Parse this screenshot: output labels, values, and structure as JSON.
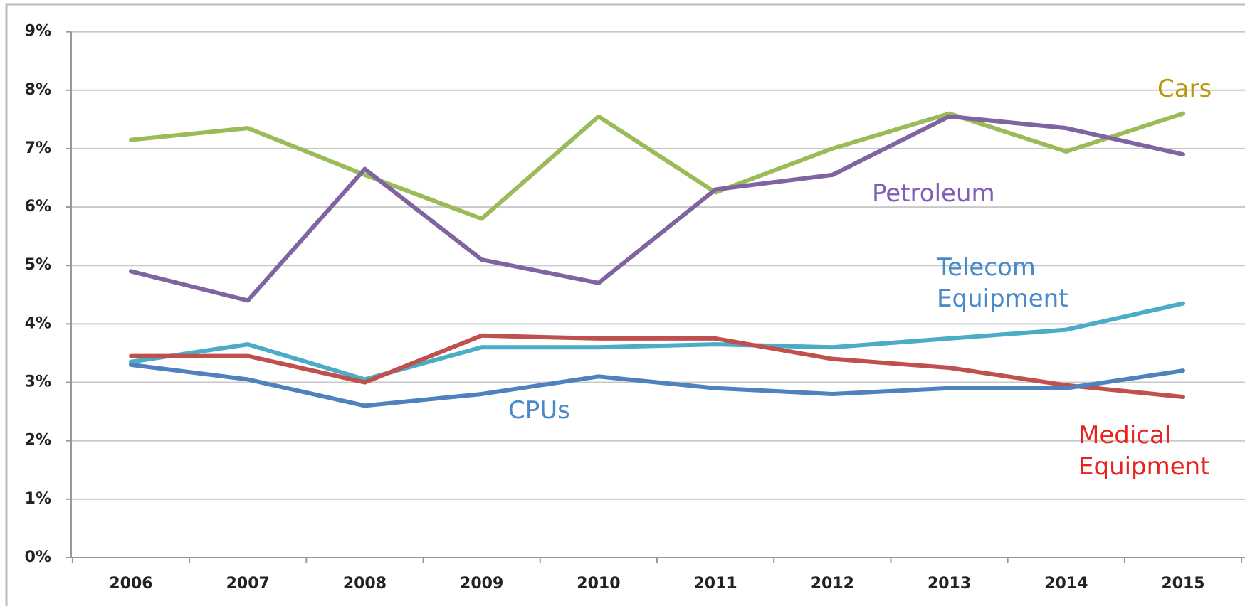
{
  "chart_data": {
    "type": "line",
    "categories": [
      "2006",
      "2007",
      "2008",
      "2009",
      "2010",
      "2011",
      "2012",
      "2013",
      "2014",
      "2015"
    ],
    "series": [
      {
        "name": "Cars",
        "color": "#9bbb59",
        "label_color": "#b8960a",
        "values": [
          7.15,
          7.35,
          6.55,
          5.8,
          7.55,
          6.25,
          7.0,
          7.6,
          6.95,
          7.6
        ]
      },
      {
        "name": "Petroleum",
        "color": "#8064a2",
        "label_color": "#7f5fb5",
        "values": [
          4.9,
          4.4,
          6.65,
          5.1,
          4.7,
          6.3,
          6.55,
          7.55,
          7.35,
          6.9
        ]
      },
      {
        "name": "Telecom Equipment",
        "color": "#4bacc6",
        "label_color": "#4a8ac9",
        "values": [
          3.35,
          3.65,
          3.05,
          3.6,
          3.6,
          3.65,
          3.6,
          3.75,
          3.9,
          4.35
        ]
      },
      {
        "name": "Medical Equipment",
        "color": "#c0504d",
        "label_color": "#e8231d",
        "values": [
          3.45,
          3.45,
          3.0,
          3.8,
          3.75,
          3.75,
          3.4,
          3.25,
          2.95,
          2.75
        ]
      },
      {
        "name": "CPUs",
        "color": "#4f81bd",
        "label_color": "#4a8ac9",
        "values": [
          3.3,
          3.05,
          2.6,
          2.8,
          3.1,
          2.9,
          2.8,
          2.9,
          2.9,
          3.2
        ]
      }
    ],
    "ylim": [
      0,
      9
    ],
    "yticks": [
      {
        "value": 0,
        "label": "0%"
      },
      {
        "value": 1,
        "label": "1%"
      },
      {
        "value": 2,
        "label": "2%"
      },
      {
        "value": 3,
        "label": "3%"
      },
      {
        "value": 4,
        "label": "4%"
      },
      {
        "value": 5,
        "label": "5%"
      },
      {
        "value": 6,
        "label": "6%"
      },
      {
        "value": 7,
        "label": "7%"
      },
      {
        "value": 8,
        "label": "8%"
      },
      {
        "value": 9,
        "label": "9%"
      }
    ],
    "grid": true
  }
}
